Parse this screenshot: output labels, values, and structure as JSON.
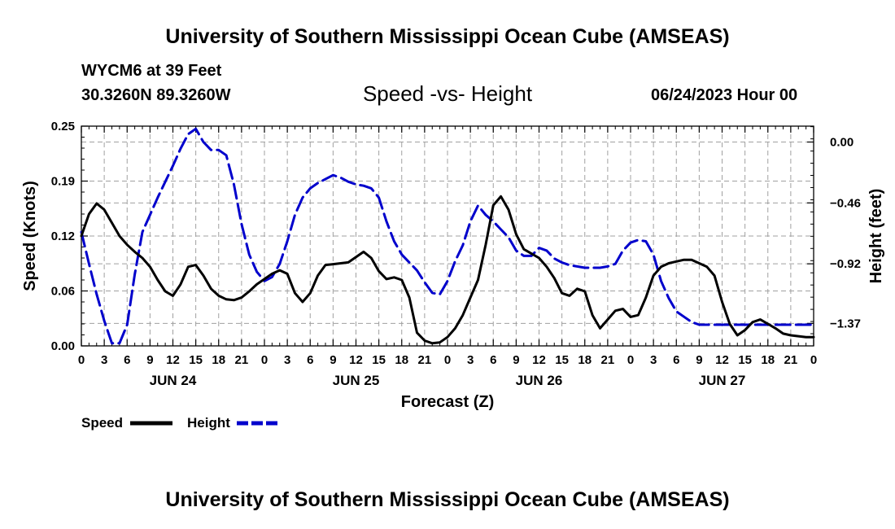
{
  "page": {
    "title_top": "University of Southern Mississippi Ocean Cube (AMSEAS)",
    "title_bottom": "University of Southern Mississippi Ocean Cube (AMSEAS)",
    "station": "WYCM6 at 39 Feet",
    "coords": "30.3260N  89.3260W",
    "datetime": "06/24/2023 Hour 00"
  },
  "chart_data": {
    "type": "line",
    "title": "Speed -vs- Height",
    "xlabel": "Forecast (Z)",
    "ylabel": "Speed (Knots)",
    "y2label": "Height (feet)",
    "xlim": [
      0,
      96
    ],
    "ylim": [
      0,
      0.25
    ],
    "y2lim": [
      -1.54,
      0.12
    ],
    "yticks": [
      "0.00",
      "0.06",
      "0.12",
      "0.19",
      "0.25"
    ],
    "yticks_values": [
      0,
      0.0625,
      0.125,
      0.1875,
      0.25
    ],
    "y2ticks": [
      "0.00",
      "−0.46",
      "−0.92",
      "−1.37"
    ],
    "y2ticks_values": [
      0,
      -0.46,
      -0.92,
      -1.37
    ],
    "xticks": [
      "0",
      "3",
      "6",
      "9",
      "12",
      "15",
      "18",
      "21",
      "0",
      "3",
      "6",
      "9",
      "12",
      "15",
      "18",
      "21",
      "0",
      "3",
      "6",
      "9",
      "12",
      "15",
      "18",
      "21",
      "0",
      "3",
      "6",
      "9",
      "12",
      "15",
      "18",
      "21",
      "0"
    ],
    "day_labels": [
      {
        "label": "JUN 24",
        "hour": 12
      },
      {
        "label": "JUN 25",
        "hour": 36
      },
      {
        "label": "JUN 26",
        "hour": 60
      },
      {
        "label": "JUN 27",
        "hour": 84
      }
    ],
    "legend": [
      "Speed",
      "Height"
    ],
    "series": [
      {
        "name": "Speed",
        "color": "#000000",
        "dash": "solid",
        "axis": "left",
        "x": [
          0,
          1,
          2,
          3,
          4,
          5,
          6,
          7,
          8,
          9,
          10,
          11,
          12,
          13,
          14,
          15,
          16,
          17,
          18,
          19,
          20,
          21,
          22,
          23,
          24,
          25,
          26,
          27,
          28,
          29,
          30,
          31,
          32,
          33,
          34,
          35,
          36,
          37,
          38,
          39,
          40,
          41,
          42,
          43,
          44,
          45,
          46,
          47,
          48,
          49,
          50,
          51,
          52,
          53,
          54,
          55,
          56,
          57,
          58,
          59,
          60,
          61,
          62,
          63,
          64,
          65,
          66,
          67,
          68,
          69,
          70,
          71,
          72,
          73,
          74,
          75,
          76,
          77,
          78,
          79,
          80,
          81,
          82,
          83,
          84,
          85,
          86,
          87,
          88,
          89,
          90,
          91,
          92,
          93,
          94,
          95,
          96
        ],
        "y": [
          0.125,
          0.15,
          0.162,
          0.155,
          0.14,
          0.125,
          0.115,
          0.107,
          0.1,
          0.09,
          0.075,
          0.062,
          0.057,
          0.07,
          0.09,
          0.092,
          0.08,
          0.065,
          0.057,
          0.053,
          0.052,
          0.055,
          0.062,
          0.07,
          0.076,
          0.082,
          0.086,
          0.082,
          0.06,
          0.05,
          0.06,
          0.08,
          0.092,
          0.093,
          0.094,
          0.095,
          0.101,
          0.107,
          0.1,
          0.085,
          0.076,
          0.078,
          0.075,
          0.055,
          0.015,
          0.006,
          0.003,
          0.004,
          0.01,
          0.02,
          0.035,
          0.055,
          0.075,
          0.115,
          0.16,
          0.17,
          0.155,
          0.127,
          0.11,
          0.105,
          0.1,
          0.09,
          0.077,
          0.06,
          0.057,
          0.065,
          0.062,
          0.035,
          0.02,
          0.03,
          0.04,
          0.042,
          0.033,
          0.035,
          0.055,
          0.08,
          0.09,
          0.094,
          0.096,
          0.098,
          0.098,
          0.094,
          0.09,
          0.08,
          0.05,
          0.025,
          0.012,
          0.018,
          0.027,
          0.03,
          0.025,
          0.02,
          0.014,
          0.012,
          0.011,
          0.01,
          0.01
        ]
      },
      {
        "name": "Height",
        "color": "#0000cc",
        "dash": "dashed",
        "axis": "right",
        "x": [
          0,
          1,
          2,
          3,
          4,
          5,
          6,
          7,
          8,
          9,
          10,
          11,
          12,
          13,
          14,
          15,
          16,
          17,
          18,
          19,
          20,
          21,
          22,
          23,
          24,
          25,
          26,
          27,
          28,
          29,
          30,
          31,
          32,
          33,
          34,
          35,
          36,
          37,
          38,
          39,
          40,
          41,
          42,
          43,
          44,
          45,
          46,
          47,
          48,
          49,
          50,
          51,
          52,
          53,
          54,
          55,
          56,
          57,
          58,
          59,
          60,
          61,
          62,
          63,
          64,
          65,
          66,
          67,
          68,
          69,
          70,
          71,
          72,
          73,
          74,
          75,
          76,
          77,
          78,
          79,
          80,
          81,
          82,
          83,
          84,
          85,
          86,
          87,
          88,
          89,
          90,
          91,
          92,
          93,
          94,
          95,
          96
        ],
        "y": [
          -0.68,
          -0.92,
          -1.15,
          -1.35,
          -1.52,
          -1.52,
          -1.38,
          -1.0,
          -0.68,
          -0.55,
          -0.42,
          -0.3,
          -0.18,
          -0.05,
          0.06,
          0.1,
          0.0,
          -0.06,
          -0.06,
          -0.1,
          -0.32,
          -0.62,
          -0.85,
          -0.98,
          -1.05,
          -1.02,
          -0.92,
          -0.75,
          -0.55,
          -0.42,
          -0.35,
          -0.31,
          -0.28,
          -0.25,
          -0.27,
          -0.3,
          -0.32,
          -0.33,
          -0.35,
          -0.42,
          -0.6,
          -0.75,
          -0.85,
          -0.91,
          -0.97,
          -1.06,
          -1.14,
          -1.15,
          -1.05,
          -0.9,
          -0.78,
          -0.6,
          -0.48,
          -0.55,
          -0.6,
          -0.66,
          -0.72,
          -0.82,
          -0.86,
          -0.86,
          -0.8,
          -0.82,
          -0.88,
          -0.91,
          -0.93,
          -0.94,
          -0.95,
          -0.95,
          -0.95,
          -0.94,
          -0.92,
          -0.82,
          -0.76,
          -0.74,
          -0.75,
          -0.85,
          -1.05,
          -1.18,
          -1.28,
          -1.32,
          -1.36,
          -1.38,
          -1.38,
          -1.38,
          -1.38,
          -1.38,
          -1.38,
          -1.38,
          -1.38,
          -1.38,
          -1.38,
          -1.38,
          -1.38,
          -1.38,
          -1.38,
          -1.38,
          -1.38
        ]
      }
    ]
  }
}
